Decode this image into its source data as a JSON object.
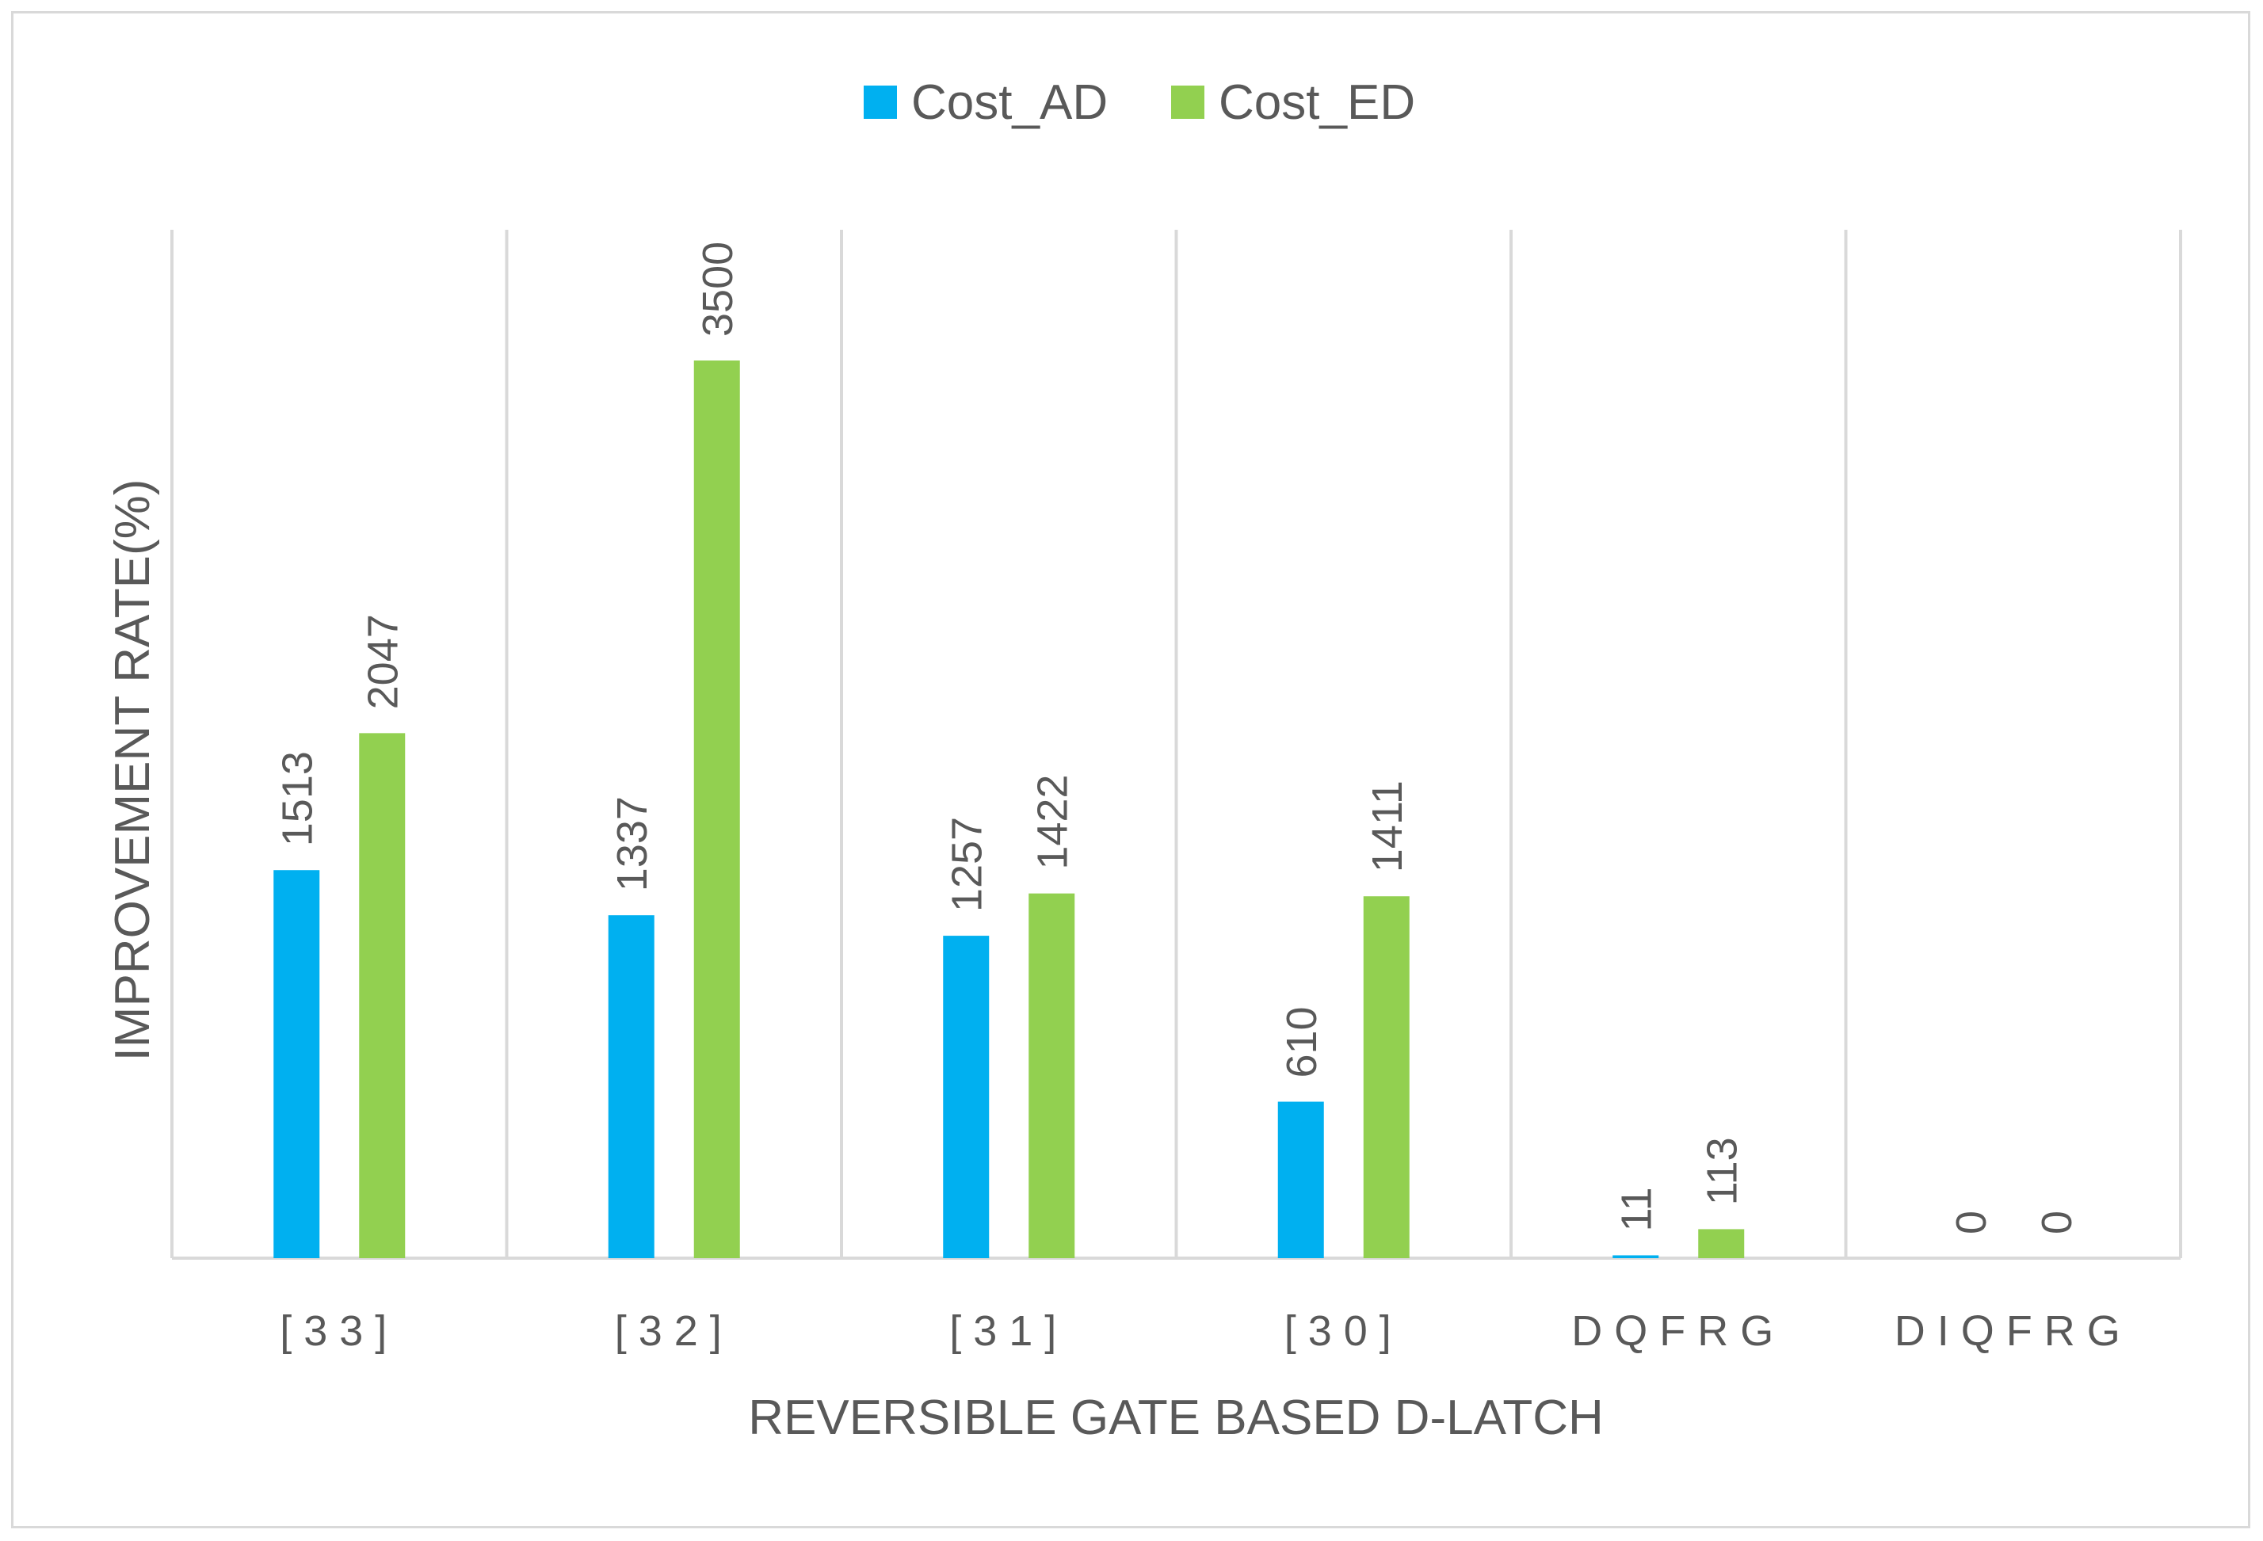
{
  "chart_data": {
    "type": "bar",
    "title": "",
    "xlabel": "REVERSIBLE GATE BASED D-LATCH",
    "ylabel": "IMPROVEMENT RATE(%)",
    "categories": [
      "[33]",
      "[32]",
      "[31]",
      "[30]",
      "DQFRG",
      "DIQFRG"
    ],
    "series": [
      {
        "name": "Cost_AD",
        "color": "#00b0f0",
        "values": [
          1513,
          1337,
          1257,
          610,
          11,
          0
        ]
      },
      {
        "name": "Cost_ED",
        "color": "#92d050",
        "values": [
          2047,
          3500,
          1422,
          1411,
          113,
          0
        ]
      }
    ],
    "ylim": [
      0,
      3500
    ],
    "grid": "vertical",
    "legend": "top-center"
  }
}
